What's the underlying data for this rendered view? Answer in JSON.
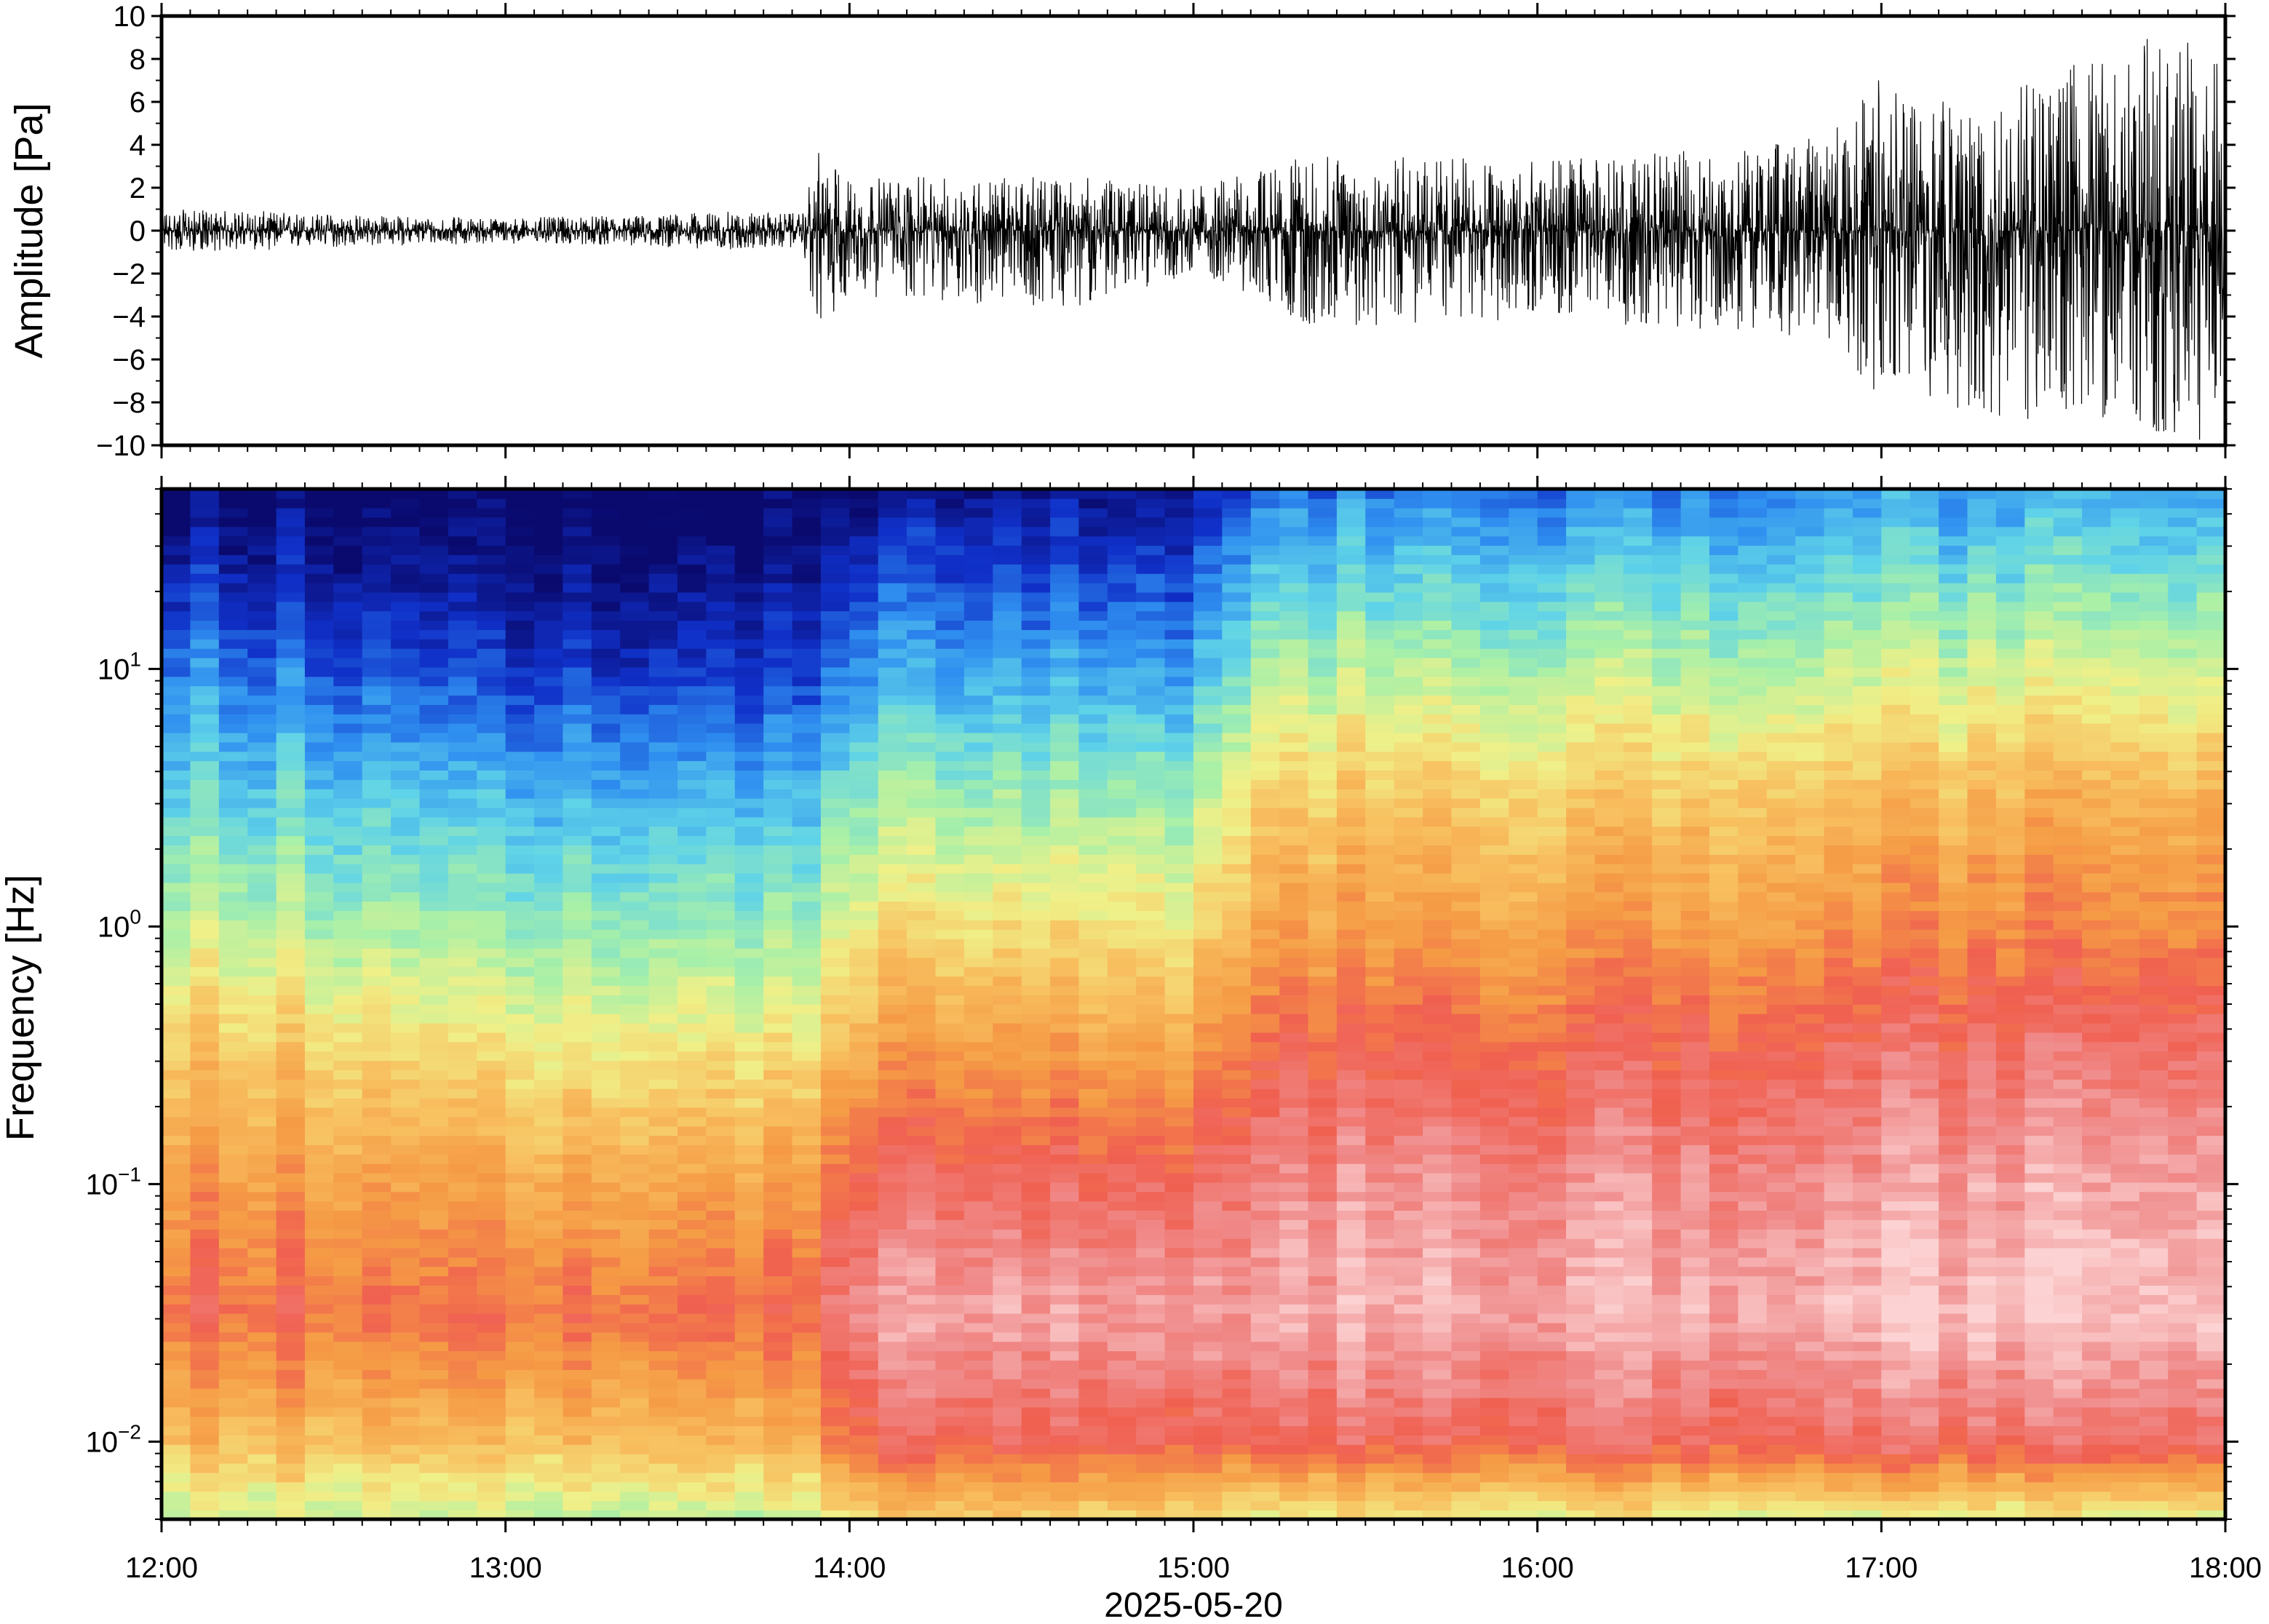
{
  "figure": {
    "date_label": "2025-05-20"
  },
  "chart_data": [
    {
      "type": "line",
      "panel": "waveform",
      "title": "",
      "xlabel": "2025-05-20",
      "ylabel": "Amplitude [Pa]",
      "xlim": [
        "2025-05-20T12:00",
        "2025-05-20T18:00"
      ],
      "ylim": [
        -10,
        10
      ],
      "y_ticks": [
        10,
        8,
        6,
        4,
        2,
        0,
        -2,
        -4,
        -6,
        -8,
        -10
      ],
      "y_tick_labels": [
        "10",
        "8",
        "6",
        "4",
        "2",
        "0",
        "−2",
        "−4",
        "−6",
        "−8",
        "−10"
      ],
      "x_ticks": [
        "12:00",
        "13:00",
        "14:00",
        "15:00",
        "16:00",
        "17:00",
        "18:00"
      ],
      "line_color": "#000000",
      "grid": false,
      "envelope": {
        "times": [
          "12:00",
          "12:20",
          "12:40",
          "13:00",
          "13:20",
          "13:40",
          "13:52",
          "13:54",
          "14:00",
          "14:20",
          "14:40",
          "15:00",
          "15:10",
          "15:20",
          "15:40",
          "16:00",
          "16:20",
          "16:40",
          "16:50",
          "17:00",
          "17:10",
          "17:30",
          "17:50",
          "18:00"
        ],
        "max_pa": [
          1.0,
          0.9,
          0.7,
          0.6,
          0.7,
          0.9,
          0.8,
          3.8,
          2.5,
          2.5,
          2.5,
          2.0,
          2.8,
          3.5,
          3.5,
          3.3,
          3.6,
          4.0,
          4.5,
          7.5,
          7.0,
          7.5,
          9.5,
          9.0
        ],
        "min_pa": [
          -1.0,
          -0.9,
          -0.7,
          -0.6,
          -0.7,
          -0.9,
          -0.8,
          -5.0,
          -3.0,
          -3.5,
          -3.5,
          -2.0,
          -3.0,
          -4.5,
          -4.5,
          -4.0,
          -4.5,
          -4.8,
          -5.0,
          -8.0,
          -8.5,
          -9.0,
          -10.0,
          -10.0
        ]
      }
    },
    {
      "type": "heatmap",
      "panel": "spectrogram",
      "title": "",
      "xlabel": "2025-05-20",
      "ylabel": "Frequency [Hz]",
      "xlim": [
        "2025-05-20T12:00",
        "2025-05-20T18:00"
      ],
      "ylim_hz": [
        0.005,
        50
      ],
      "yscale": "log",
      "y_ticks_hz": [
        0.01,
        0.1,
        1,
        10
      ],
      "y_tick_labels": [
        {
          "base": "10",
          "exp": "−2"
        },
        {
          "base": "10",
          "exp": "−1"
        },
        {
          "base": "10",
          "exp": "0"
        },
        {
          "base": "10",
          "exp": "1"
        }
      ],
      "x_ticks": [
        "12:00",
        "13:00",
        "14:00",
        "15:00",
        "16:00",
        "17:00",
        "18:00"
      ],
      "colormap": [
        "#0a0a6e",
        "#1030c8",
        "#2f8ff0",
        "#5fd3e8",
        "#a8f0a8",
        "#f0f088",
        "#f8c060",
        "#f59a45",
        "#f06050",
        "#f08c8c",
        "#fcd2d2"
      ],
      "power_profile": {
        "note": "relative power (0 = darkest blue, 1 = palest pink)",
        "times": [
          "12:00",
          "13:00",
          "13:54",
          "14:00",
          "15:00",
          "15:10",
          "16:00",
          "17:00",
          "18:00"
        ],
        "log10_freq": [
          -2.3,
          -2.0,
          -1.5,
          -1.0,
          -0.5,
          0.0,
          0.5,
          1.0,
          1.5,
          1.7
        ],
        "values": [
          [
            0.45,
            0.62,
            0.78,
            0.7,
            0.6,
            0.45,
            0.32,
            0.2,
            0.05,
            0.0
          ],
          [
            0.45,
            0.62,
            0.78,
            0.68,
            0.55,
            0.4,
            0.28,
            0.12,
            0.02,
            0.0
          ],
          [
            0.45,
            0.65,
            0.8,
            0.7,
            0.55,
            0.4,
            0.28,
            0.12,
            0.02,
            0.0
          ],
          [
            0.55,
            0.8,
            0.92,
            0.82,
            0.68,
            0.52,
            0.38,
            0.22,
            0.08,
            0.02
          ],
          [
            0.55,
            0.8,
            0.92,
            0.82,
            0.68,
            0.52,
            0.38,
            0.22,
            0.08,
            0.02
          ],
          [
            0.5,
            0.82,
            0.95,
            0.9,
            0.8,
            0.68,
            0.58,
            0.42,
            0.25,
            0.18
          ],
          [
            0.5,
            0.82,
            0.95,
            0.9,
            0.8,
            0.68,
            0.58,
            0.42,
            0.25,
            0.18
          ],
          [
            0.48,
            0.84,
            0.98,
            0.92,
            0.84,
            0.72,
            0.62,
            0.45,
            0.28,
            0.22
          ],
          [
            0.48,
            0.84,
            0.98,
            0.94,
            0.86,
            0.74,
            0.64,
            0.46,
            0.3,
            0.24
          ]
        ]
      }
    }
  ]
}
